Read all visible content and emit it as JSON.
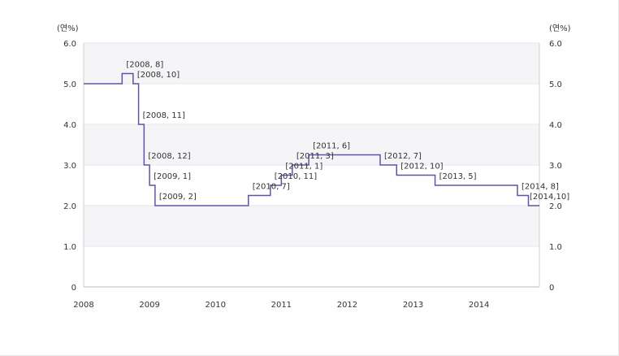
{
  "chart_data": {
    "type": "line",
    "step": "after",
    "y_unit_label": "(연%)",
    "ylim": [
      0,
      6
    ],
    "y_ticks": [
      "0",
      "1.0",
      "2.0",
      "3.0",
      "4.0",
      "5.0",
      "6.0"
    ],
    "x_ticks": [
      "2008",
      "2009",
      "2010",
      "2011",
      "2012",
      "2013",
      "2014"
    ],
    "xlim": [
      "2008-01",
      "2014-12"
    ],
    "grid": true,
    "line_color": "#5b56a5",
    "band_color": "#f5f5f8",
    "series": [
      {
        "points": [
          {
            "x": "2008-01",
            "y": 5.0
          },
          {
            "x": "2008-08",
            "y": 5.25
          },
          {
            "x": "2008-10",
            "y": 5.0
          },
          {
            "x": "2008-11",
            "y": 4.0
          },
          {
            "x": "2008-12",
            "y": 3.0
          },
          {
            "x": "2009-01",
            "y": 2.5
          },
          {
            "x": "2009-02",
            "y": 2.0
          },
          {
            "x": "2010-07",
            "y": 2.25
          },
          {
            "x": "2010-11",
            "y": 2.5
          },
          {
            "x": "2011-01",
            "y": 2.75
          },
          {
            "x": "2011-03",
            "y": 3.0
          },
          {
            "x": "2011-06",
            "y": 3.25
          },
          {
            "x": "2012-07",
            "y": 3.0
          },
          {
            "x": "2012-10",
            "y": 2.75
          },
          {
            "x": "2013-05",
            "y": 2.5
          },
          {
            "x": "2014-08",
            "y": 2.25
          },
          {
            "x": "2014-10",
            "y": 2.0
          }
        ]
      }
    ],
    "annotations": [
      {
        "label": "[2008, 8]",
        "x": "2008-08",
        "y": 5.25
      },
      {
        "label": "[2008, 10]",
        "x": "2008-10",
        "y": 5.0
      },
      {
        "label": "[2008, 11]",
        "x": "2008-11",
        "y": 4.0
      },
      {
        "label": "[2008, 12]",
        "x": "2008-12",
        "y": 3.0
      },
      {
        "label": "[2009, 1]",
        "x": "2009-01",
        "y": 2.5
      },
      {
        "label": "[2009, 2]",
        "x": "2009-02",
        "y": 2.0
      },
      {
        "label": "[2010, 7]",
        "x": "2010-07",
        "y": 2.25
      },
      {
        "label": "[2010, 11]",
        "x": "2010-11",
        "y": 2.5
      },
      {
        "label": "[2011, 1]",
        "x": "2011-01",
        "y": 2.75
      },
      {
        "label": "[2011, 3]",
        "x": "2011-03",
        "y": 3.0
      },
      {
        "label": "[2011, 6]",
        "x": "2011-06",
        "y": 3.25
      },
      {
        "label": "[2012, 7]",
        "x": "2012-07",
        "y": 3.0
      },
      {
        "label": "[2012, 10]",
        "x": "2012-10",
        "y": 2.75
      },
      {
        "label": "[2013, 5]",
        "x": "2013-05",
        "y": 2.5
      },
      {
        "label": "[2014, 8]",
        "x": "2014-08",
        "y": 2.25
      },
      {
        "label": "[2014,10]",
        "x": "2014-10",
        "y": 2.0
      }
    ]
  }
}
